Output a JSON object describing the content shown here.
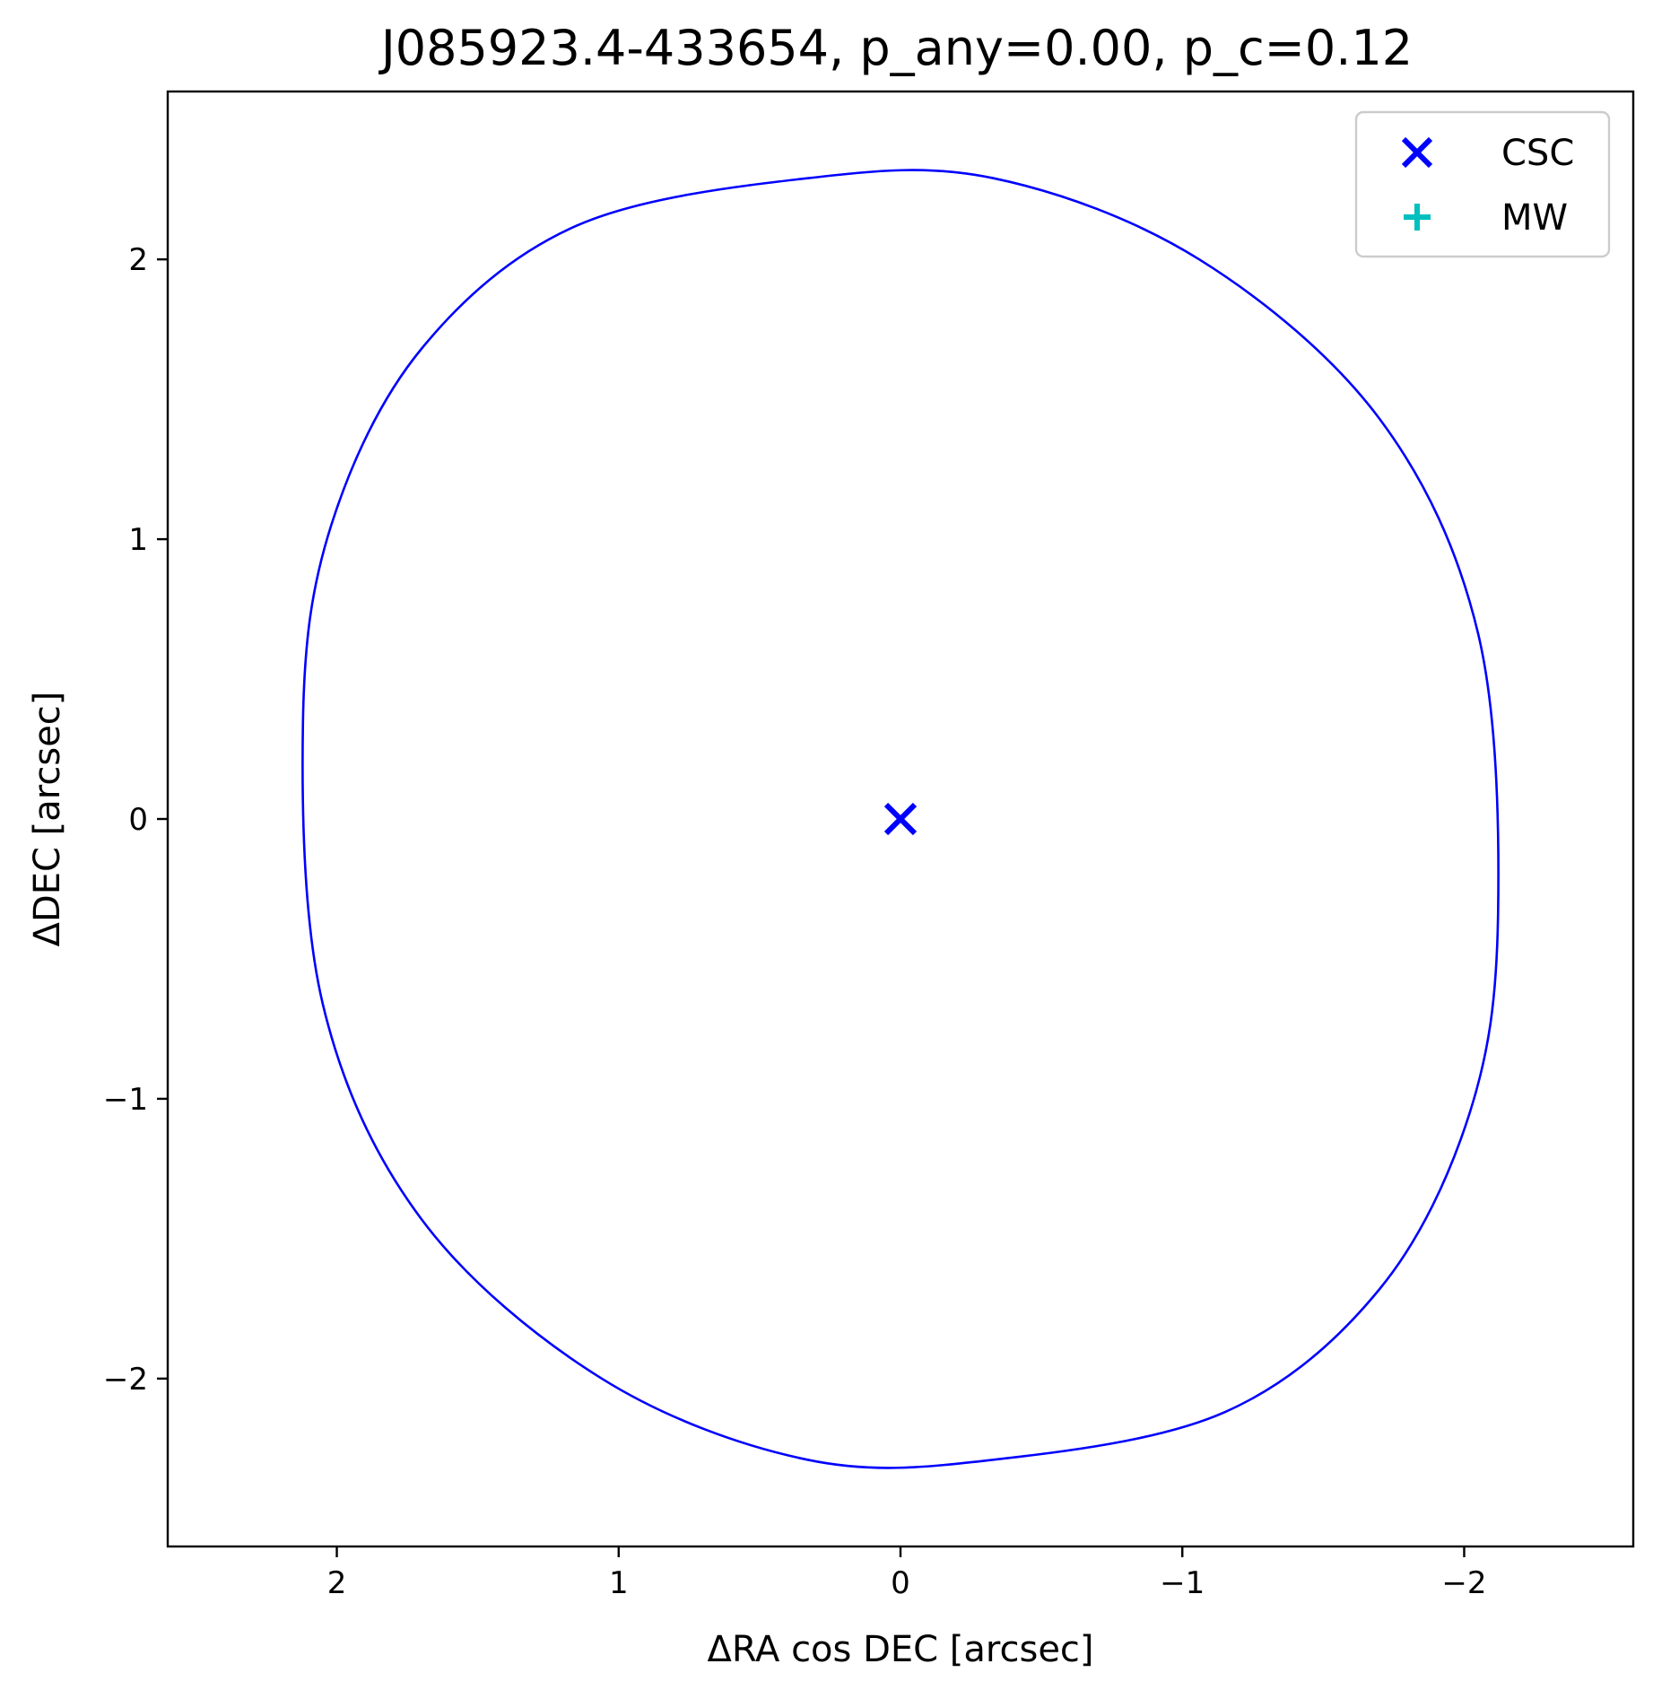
{
  "chart_data": {
    "type": "scatter",
    "title": "J085923.4-433654, p_any=0.00, p_c=0.12",
    "xlabel": "ΔRA cos DEC [arcsec]",
    "ylabel": "ΔDEC [arcsec]",
    "xlim": [
      2.6,
      -2.6
    ],
    "ylim": [
      -2.6,
      2.6
    ],
    "x_inverted": true,
    "grid": false,
    "xticks": [
      {
        "value": 2,
        "label": "2"
      },
      {
        "value": 1,
        "label": "1"
      },
      {
        "value": 0,
        "label": "0"
      },
      {
        "value": -1,
        "label": "−1"
      },
      {
        "value": -2,
        "label": "−2"
      }
    ],
    "yticks": [
      {
        "value": 2,
        "label": "2"
      },
      {
        "value": 1,
        "label": "1"
      },
      {
        "value": 0,
        "label": "0"
      },
      {
        "value": -1,
        "label": "−1"
      },
      {
        "value": -2,
        "label": "−2"
      }
    ],
    "legend": {
      "placement": "top-right",
      "entries": [
        {
          "label": "CSC",
          "marker": "x",
          "color": "#0000ff"
        },
        {
          "label": "MW",
          "marker": "+",
          "color": "#00bfbf"
        }
      ]
    },
    "series": [
      {
        "name": "CSC",
        "marker": "x",
        "color": "#0000ff",
        "points": [
          {
            "x": 0,
            "y": 0
          }
        ]
      },
      {
        "name": "MW",
        "marker": "+",
        "color": "#00bfbf",
        "points": []
      }
    ],
    "error_ellipse": {
      "color": "#0000ff",
      "center": [
        0,
        0
      ],
      "points": [
        [
          2.12,
          0.35
        ],
        [
          2.02,
          1.05
        ],
        [
          1.7,
          1.68
        ],
        [
          1.15,
          2.12
        ],
        [
          0.33,
          2.29
        ],
        [
          -0.33,
          2.29
        ],
        [
          -1.06,
          2.0
        ],
        [
          -1.7,
          1.43
        ],
        [
          -2.05,
          0.66
        ],
        [
          -2.12,
          -0.35
        ],
        [
          -2.02,
          -1.05
        ],
        [
          -1.7,
          -1.68
        ],
        [
          -1.15,
          -2.12
        ],
        [
          -0.33,
          -2.29
        ],
        [
          0.33,
          -2.29
        ],
        [
          1.06,
          -2.0
        ],
        [
          1.7,
          -1.43
        ],
        [
          2.05,
          -0.66
        ]
      ]
    }
  }
}
